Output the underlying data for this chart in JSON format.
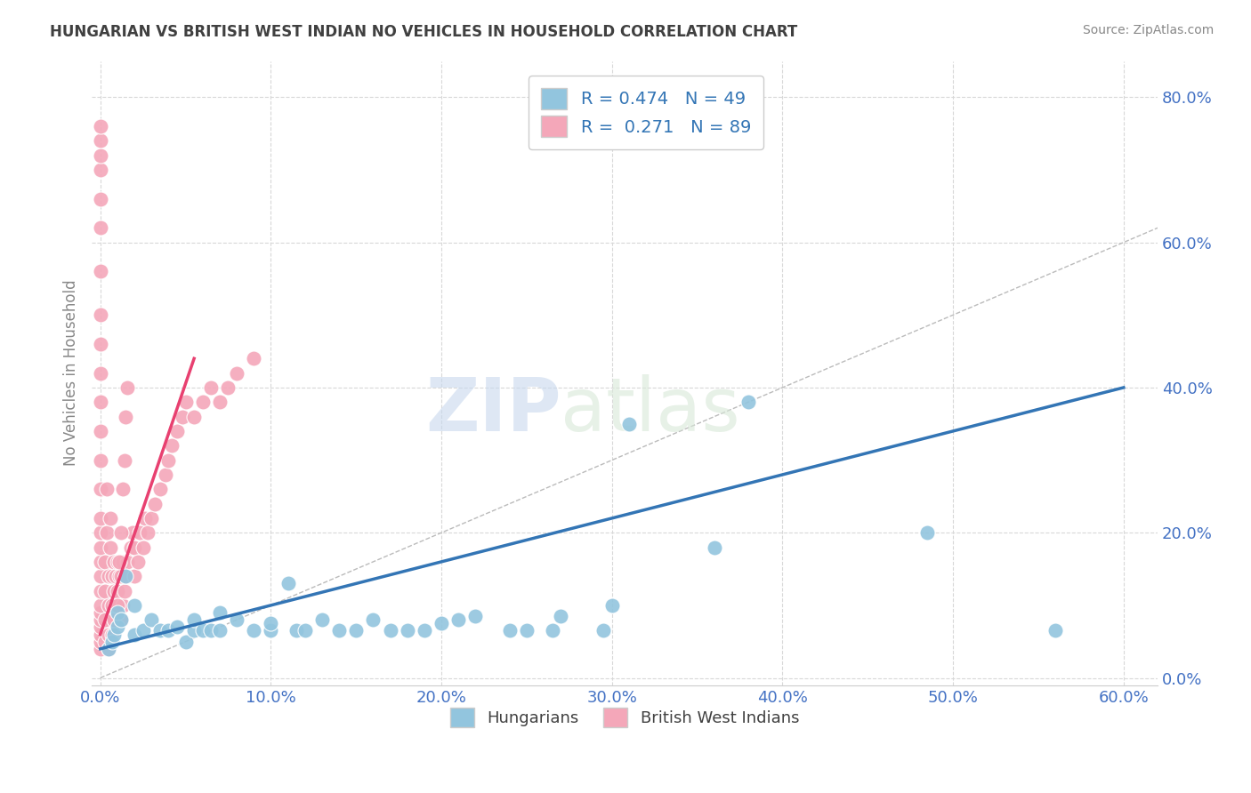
{
  "title": "HUNGARIAN VS BRITISH WEST INDIAN NO VEHICLES IN HOUSEHOLD CORRELATION CHART",
  "source": "Source: ZipAtlas.com",
  "ylabel": "No Vehicles in Household",
  "xlim": [
    -0.005,
    0.62
  ],
  "ylim": [
    -0.01,
    0.85
  ],
  "xticks": [
    0.0,
    0.1,
    0.2,
    0.3,
    0.4,
    0.5,
    0.6
  ],
  "yticks": [
    0.0,
    0.2,
    0.4,
    0.6,
    0.8
  ],
  "hungarian_R": 0.474,
  "hungarian_N": 49,
  "bwi_R": 0.271,
  "bwi_N": 89,
  "hungarian_color": "#92c5de",
  "bwi_color": "#f4a7b9",
  "trend_blue": "#3375b5",
  "trend_pink": "#e84070",
  "hungarian_x": [
    0.005,
    0.007,
    0.008,
    0.01,
    0.01,
    0.012,
    0.015,
    0.02,
    0.02,
    0.025,
    0.03,
    0.035,
    0.04,
    0.045,
    0.05,
    0.055,
    0.055,
    0.06,
    0.065,
    0.07,
    0.07,
    0.08,
    0.09,
    0.1,
    0.1,
    0.11,
    0.115,
    0.12,
    0.13,
    0.14,
    0.15,
    0.16,
    0.17,
    0.18,
    0.19,
    0.2,
    0.21,
    0.22,
    0.24,
    0.25,
    0.265,
    0.27,
    0.295,
    0.3,
    0.31,
    0.36,
    0.38,
    0.485,
    0.56
  ],
  "hungarian_y": [
    0.04,
    0.05,
    0.06,
    0.07,
    0.09,
    0.08,
    0.14,
    0.06,
    0.1,
    0.065,
    0.08,
    0.065,
    0.065,
    0.07,
    0.05,
    0.065,
    0.08,
    0.065,
    0.065,
    0.065,
    0.09,
    0.08,
    0.065,
    0.065,
    0.075,
    0.13,
    0.065,
    0.065,
    0.08,
    0.065,
    0.065,
    0.08,
    0.065,
    0.065,
    0.065,
    0.075,
    0.08,
    0.085,
    0.065,
    0.065,
    0.065,
    0.085,
    0.065,
    0.1,
    0.35,
    0.18,
    0.38,
    0.2,
    0.065
  ],
  "bwi_x": [
    0.0,
    0.0,
    0.0,
    0.0,
    0.0,
    0.0,
    0.0,
    0.0,
    0.0,
    0.0,
    0.0,
    0.0,
    0.0,
    0.0,
    0.0,
    0.0,
    0.0,
    0.0,
    0.0,
    0.0,
    0.0,
    0.0,
    0.0,
    0.0,
    0.0,
    0.0,
    0.0,
    0.003,
    0.003,
    0.003,
    0.003,
    0.004,
    0.004,
    0.005,
    0.005,
    0.005,
    0.005,
    0.006,
    0.006,
    0.007,
    0.007,
    0.007,
    0.008,
    0.008,
    0.008,
    0.009,
    0.009,
    0.01,
    0.01,
    0.011,
    0.012,
    0.012,
    0.013,
    0.013,
    0.014,
    0.015,
    0.016,
    0.018,
    0.019,
    0.02,
    0.02,
    0.022,
    0.023,
    0.025,
    0.026,
    0.028,
    0.03,
    0.032,
    0.035,
    0.038,
    0.04,
    0.042,
    0.045,
    0.048,
    0.05,
    0.055,
    0.06,
    0.065,
    0.07,
    0.075,
    0.08,
    0.09,
    0.01,
    0.011,
    0.012,
    0.013,
    0.014,
    0.015,
    0.016
  ],
  "bwi_y": [
    0.04,
    0.05,
    0.06,
    0.07,
    0.08,
    0.09,
    0.1,
    0.12,
    0.14,
    0.16,
    0.18,
    0.2,
    0.22,
    0.26,
    0.3,
    0.34,
    0.38,
    0.42,
    0.46,
    0.5,
    0.56,
    0.62,
    0.66,
    0.7,
    0.72,
    0.74,
    0.76,
    0.05,
    0.08,
    0.12,
    0.16,
    0.2,
    0.26,
    0.04,
    0.06,
    0.1,
    0.14,
    0.18,
    0.22,
    0.06,
    0.1,
    0.14,
    0.08,
    0.12,
    0.16,
    0.1,
    0.14,
    0.12,
    0.16,
    0.14,
    0.08,
    0.14,
    0.1,
    0.16,
    0.12,
    0.14,
    0.16,
    0.18,
    0.2,
    0.14,
    0.18,
    0.16,
    0.2,
    0.18,
    0.22,
    0.2,
    0.22,
    0.24,
    0.26,
    0.28,
    0.3,
    0.32,
    0.34,
    0.36,
    0.38,
    0.36,
    0.38,
    0.4,
    0.38,
    0.4,
    0.42,
    0.44,
    0.1,
    0.16,
    0.2,
    0.26,
    0.3,
    0.36,
    0.4
  ],
  "watermark_zip": "ZIP",
  "watermark_atlas": "atlas",
  "background_color": "#ffffff",
  "grid_color": "#d8d8d8",
  "title_color": "#404040",
  "axis_label_color": "#888888",
  "tick_label_color": "#4472c4",
  "source_color": "#888888"
}
